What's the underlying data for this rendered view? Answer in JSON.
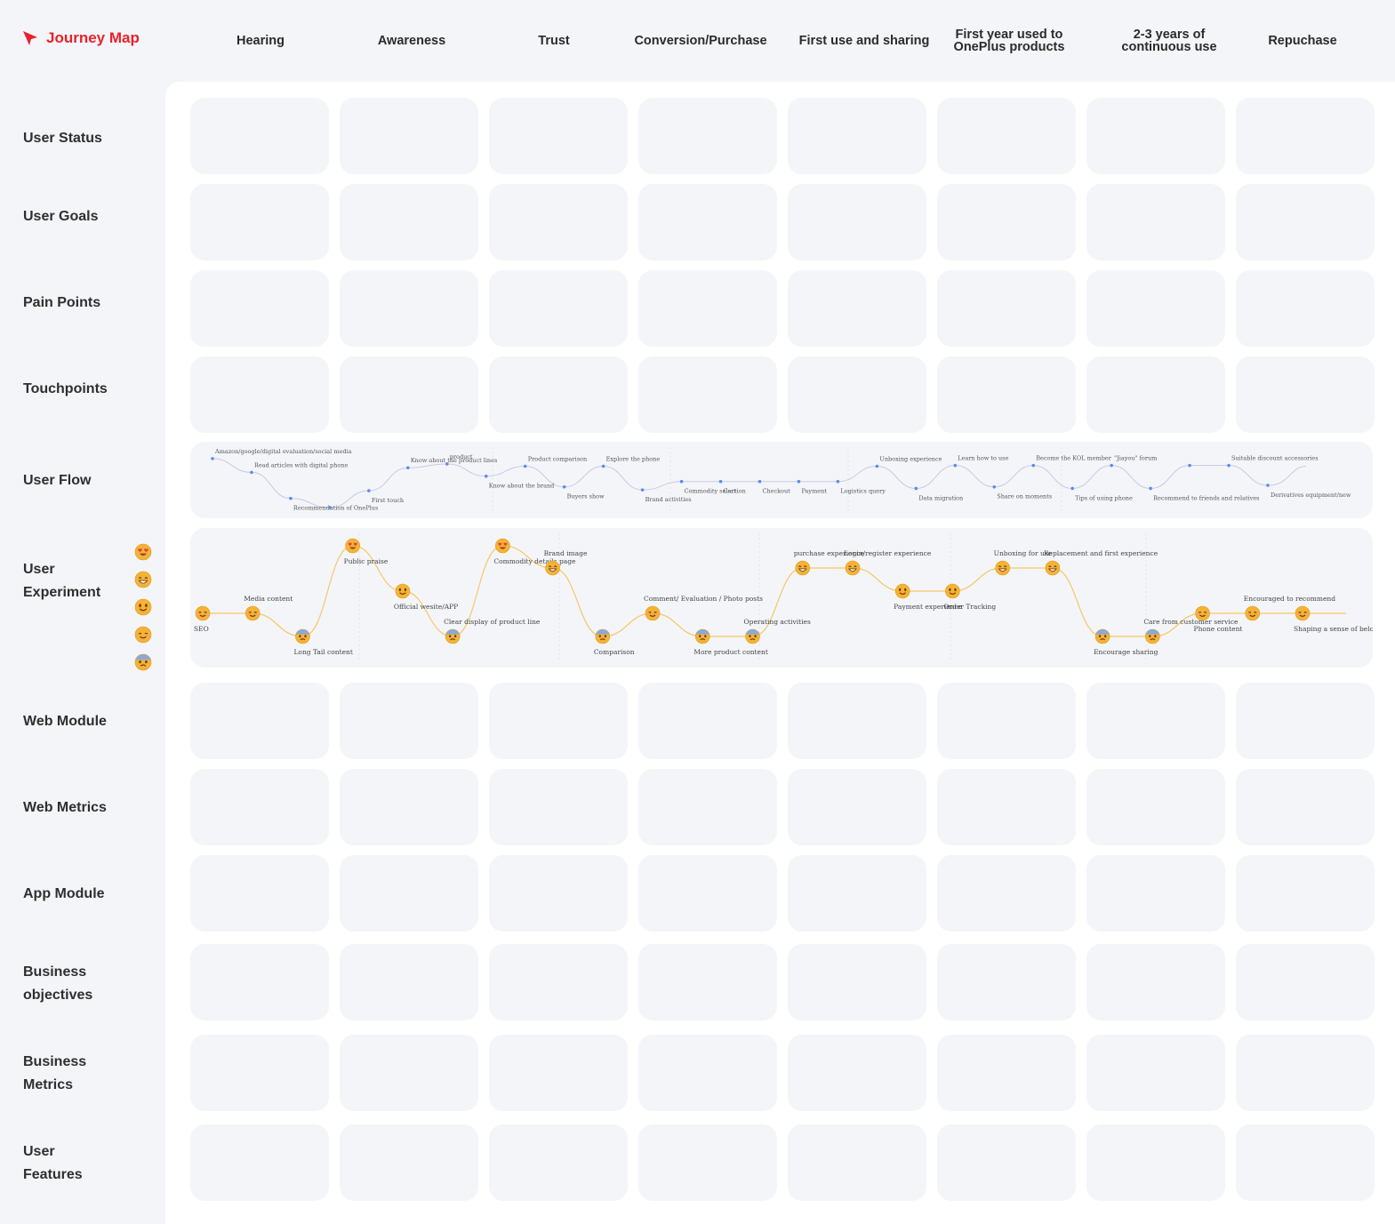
{
  "app": {
    "title": "Journey Map"
  },
  "stages": [
    "Hearing",
    "Awareness",
    "Trust",
    "Conversion/Purchase",
    "First use and sharing",
    "First  year used to\nOnePlus products",
    "2-3 years of\ncontinuous use",
    "Repuchase"
  ],
  "rows": {
    "user_status": "User Status",
    "user_goals": "User Goals",
    "pain_points": "Pain Points",
    "touchpoints": "Touchpoints",
    "user_flow": "User Flow",
    "user_experiment": "User\nExperiment",
    "web_module": "Web Module",
    "web_metrics": "Web Metrics",
    "app_module": "App Module",
    "business_objectives": "Business\nobjectives",
    "business_metrics": "Business\nMetrics",
    "user_features": "User\nFeatures"
  },
  "emotion_legend": [
    "heart-eyes",
    "grinning",
    "smiling",
    "relieved",
    "anxious"
  ],
  "colors": {
    "brand": "#e8222a",
    "flow_line": "#c7cbe0",
    "flow_point": "#5b8cf0",
    "experience_line": "#f5c867",
    "face": "#f5b335"
  },
  "user_flow": {
    "points": [
      {
        "label": "Amazon/google/digital evaluation/social media",
        "y": 0.22
      },
      {
        "label": "Read articles with digital phone",
        "y": 0.4
      },
      {
        "label": "Recommendation of OnePlus",
        "y": 0.74
      },
      {
        "label": "",
        "y": 0.86
      },
      {
        "label": "First touch",
        "y": 0.64
      },
      {
        "label": "Know about the product lines",
        "y": 0.34
      },
      {
        "label": "product",
        "y": 0.29
      },
      {
        "label": "Know about the brand",
        "y": 0.45
      },
      {
        "label": "Product comparison",
        "y": 0.32
      },
      {
        "label": "Buyers show",
        "y": 0.59
      },
      {
        "label": "Explore the phone",
        "y": 0.32
      },
      {
        "label": "Brand activities",
        "y": 0.63
      },
      {
        "label": "Commodity selection",
        "y": 0.52
      },
      {
        "label": "Cart",
        "y": 0.52
      },
      {
        "label": "Checkout",
        "y": 0.52
      },
      {
        "label": "Payment",
        "y": 0.52
      },
      {
        "label": "Logistics query",
        "y": 0.52
      },
      {
        "label": "Unboxing experience",
        "y": 0.32
      },
      {
        "label": "Data migration",
        "y": 0.61
      },
      {
        "label": "Learn how to use",
        "y": 0.31
      },
      {
        "label": "Share on moments",
        "y": 0.59
      },
      {
        "label": "Become the KOL member",
        "y": 0.31
      },
      {
        "label": "Tips of using phone",
        "y": 0.61
      },
      {
        "label": "\"Jiayou\" forum",
        "y": 0.31
      },
      {
        "label": "Recommend to friends and relatives",
        "y": 0.61
      },
      {
        "label": "",
        "y": 0.31
      },
      {
        "label": "Suitable discount accessories",
        "y": 0.31
      },
      {
        "label": "Derivatives equipment/new",
        "y": 0.57
      }
    ]
  },
  "user_experience": {
    "levels": [
      "heart-eyes",
      "grinning",
      "smiling",
      "relieved",
      "anxious"
    ],
    "points": [
      {
        "label": "SEO",
        "level": 4
      },
      {
        "label": "Media content",
        "level": 4
      },
      {
        "label": "Long Tail content",
        "level": 5
      },
      {
        "label": "Public praise",
        "level": 1
      },
      {
        "label": "Official wesite/APP",
        "level": 3
      },
      {
        "label": "Clear display of product line",
        "level": 5
      },
      {
        "label": "Commodity details page",
        "level": 1
      },
      {
        "label": "Brand image",
        "level": 2
      },
      {
        "label": "Comparison",
        "level": 5
      },
      {
        "label": "Comment/ Evaluation / Photo posts",
        "level": 4
      },
      {
        "label": "More product content",
        "level": 5
      },
      {
        "label": "Operating activities",
        "level": 5
      },
      {
        "label": "purchase experience",
        "level": 2
      },
      {
        "label": "Login/register experience",
        "level": 2
      },
      {
        "label": "Payment experience",
        "level": 3
      },
      {
        "label": "Order Tracking",
        "level": 3
      },
      {
        "label": "Unboxing for use",
        "level": 2
      },
      {
        "label": "Replacement and first experience",
        "level": 2
      },
      {
        "label": "Encourage sharing",
        "level": 5
      },
      {
        "label": "Care from customer service",
        "level": 5
      },
      {
        "label": "Phone content",
        "level": 4
      },
      {
        "label": "Encouraged to recommend",
        "level": 4
      },
      {
        "label": "Shaping a sense of belonging",
        "level": 4
      }
    ]
  }
}
